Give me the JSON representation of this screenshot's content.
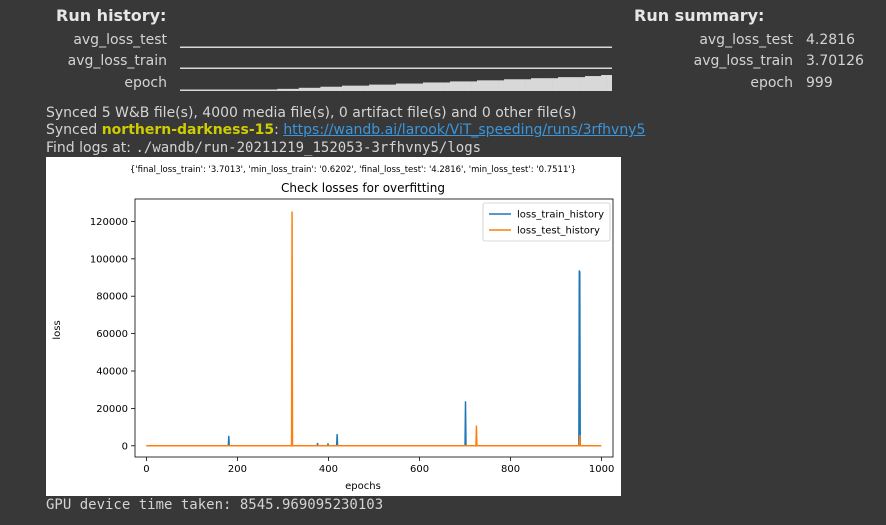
{
  "history": {
    "title": "Run history:",
    "metrics": [
      {
        "label": "avg_loss_test",
        "bars": [
          1,
          1,
          1,
          1,
          1,
          1,
          1,
          1,
          1,
          1,
          1,
          1,
          1,
          1,
          1,
          1,
          1,
          1,
          1,
          1,
          1,
          1,
          1,
          1,
          1,
          1,
          1,
          1,
          1,
          1,
          1,
          1,
          1,
          1,
          1,
          1,
          1,
          1,
          1,
          1,
          1,
          1,
          1,
          1,
          1,
          1,
          1,
          1,
          1,
          1,
          1,
          1,
          1,
          1,
          1,
          1,
          1,
          1,
          1,
          1,
          1,
          1,
          1,
          1,
          1,
          1,
          1,
          1,
          1,
          1,
          1,
          1,
          1,
          1,
          1,
          1,
          1,
          1,
          1,
          1
        ]
      },
      {
        "label": "avg_loss_train",
        "bars": [
          1,
          1,
          1,
          1,
          1,
          1,
          1,
          1,
          1,
          1,
          1,
          1,
          1,
          1,
          1,
          1,
          1,
          1,
          1,
          1,
          1,
          1,
          1,
          1,
          1,
          1,
          1,
          1,
          1,
          1,
          1,
          1,
          1,
          1,
          1,
          1,
          1,
          1,
          1,
          1,
          1,
          1,
          1,
          1,
          1,
          1,
          1,
          1,
          1,
          1,
          1,
          1,
          1,
          1,
          1,
          1,
          1,
          1,
          1,
          1,
          1,
          1,
          1,
          1,
          1,
          1,
          1,
          1,
          1,
          1,
          1,
          1,
          1,
          1,
          1,
          1,
          1,
          1,
          1,
          1
        ]
      },
      {
        "label": "epoch",
        "bars": [
          1,
          1,
          1,
          1,
          1,
          1,
          1,
          1,
          1,
          1,
          1,
          1,
          1,
          1,
          1,
          1,
          1,
          1,
          2,
          2,
          2,
          2,
          3,
          3,
          3,
          3,
          4,
          4,
          4,
          4,
          5,
          5,
          5,
          5,
          5,
          6,
          6,
          6,
          6,
          6,
          7,
          7,
          7,
          7,
          7,
          8,
          8,
          8,
          8,
          8,
          9,
          9,
          9,
          9,
          9,
          10,
          10,
          10,
          10,
          10,
          11,
          11,
          11,
          11,
          11,
          12,
          12,
          12,
          12,
          12,
          13,
          13,
          13,
          13,
          13,
          14,
          14,
          14,
          15,
          15
        ]
      }
    ]
  },
  "summary": {
    "title": "Run summary:",
    "items": [
      {
        "label": "avg_loss_test",
        "value": "4.2816"
      },
      {
        "label": "avg_loss_train",
        "value": "3.70126"
      },
      {
        "label": "epoch",
        "value": "999"
      }
    ]
  },
  "log": {
    "synced_files": "Synced 5 W&B file(s), 4000 media file(s), 0 artifact file(s) and 0 other file(s)",
    "synced_prefix": "Synced",
    "run_name": "northern-darkness-15",
    "run_colon": ":",
    "run_url": "https://wandb.ai/larook/ViT_speeding/runs/3rfhvny5",
    "logs_prefix": "Find logs at:",
    "logs_path": "./wandb/run-20211219_152053-3rfhvny5/logs"
  },
  "footer": "GPU device time taken:  8545.969095230103",
  "chart_data": {
    "type": "line",
    "suptitle": "{'final_loss_train': '3.7013', 'min_loss_train': '0.6202', 'final_loss_test': '4.2816', 'min_loss_test': '0.7511'}",
    "title": "Check losses for overfitting",
    "xlabel": "epochs",
    "ylabel": "loss",
    "xlim": [
      -25,
      1025
    ],
    "ylim": [
      -6000,
      132000
    ],
    "xticks": [
      0,
      200,
      400,
      600,
      800,
      1000
    ],
    "yticks": [
      0,
      20000,
      40000,
      60000,
      80000,
      100000,
      120000
    ],
    "legend_position": "top-right",
    "series": [
      {
        "name": "loss_train_history",
        "color": "#1f77b4",
        "x": [
          0,
          180,
          181,
          182,
          183,
          375,
          376,
          377,
          398,
          399,
          400,
          418,
          419,
          420,
          700,
          701,
          702,
          950,
          951,
          952,
          953,
          999
        ],
        "y": [
          0,
          0,
          5000,
          0,
          0,
          0,
          1200,
          0,
          0,
          1000,
          0,
          0,
          6000,
          0,
          0,
          23500,
          0,
          0,
          93500,
          93000,
          0,
          0
        ]
      },
      {
        "name": "loss_test_history",
        "color": "#ff7f0e",
        "x": [
          0,
          319,
          320,
          321,
          322,
          724,
          725,
          726,
          951,
          952,
          953,
          999
        ],
        "y": [
          0,
          0,
          125000,
          0,
          0,
          0,
          10500,
          0,
          0,
          5500,
          0,
          0
        ]
      }
    ]
  }
}
